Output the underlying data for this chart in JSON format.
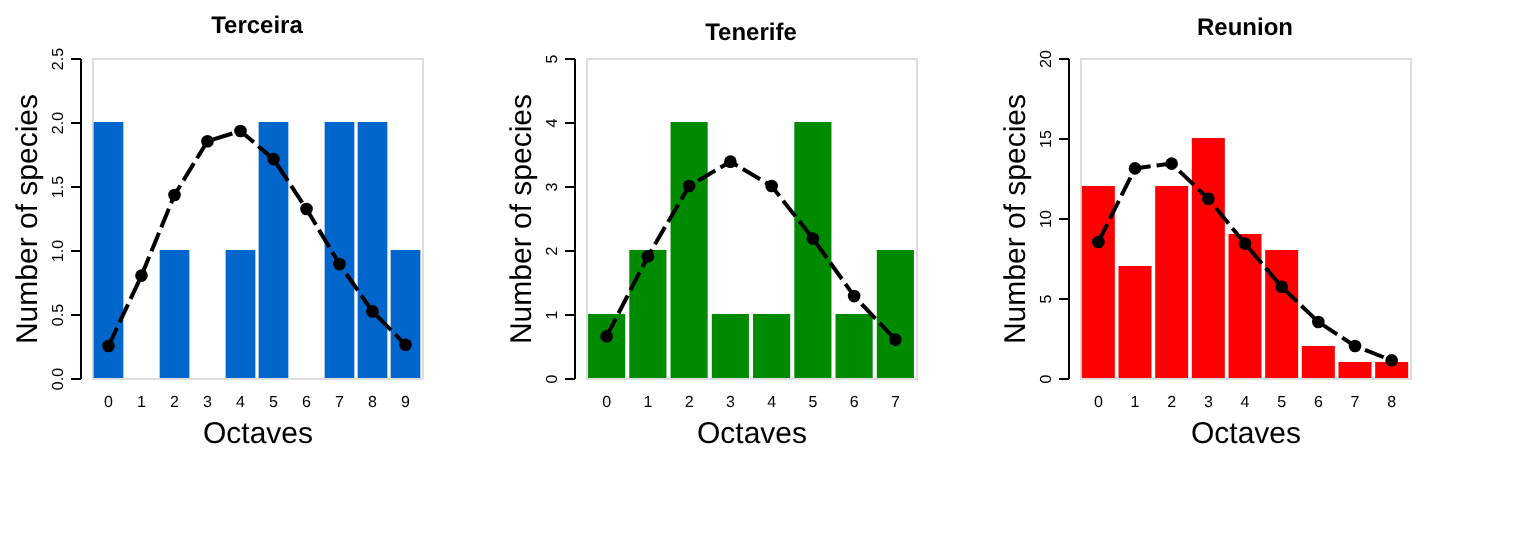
{
  "chart_data": [
    {
      "type": "bar",
      "title": "Terceira",
      "xlabel": "Octaves",
      "ylabel": "Number of species",
      "categories": [
        "0",
        "1",
        "2",
        "3",
        "4",
        "5",
        "6",
        "7",
        "8",
        "9"
      ],
      "ylim": [
        0,
        2.5
      ],
      "yticks": [
        {
          "value": 0,
          "label": "0.0"
        },
        {
          "value": 0.5,
          "label": "0.5"
        },
        {
          "value": 1,
          "label": "1.0"
        },
        {
          "value": 1.5,
          "label": "1.5"
        },
        {
          "value": 2,
          "label": "2.0"
        },
        {
          "value": 2.5,
          "label": "2.5"
        }
      ],
      "grid": false,
      "series": [
        {
          "color": "#0066cc",
          "values": [
            2,
            0,
            1,
            0,
            1,
            2,
            0,
            2,
            2,
            1
          ]
        },
        {
          "type": "line",
          "color": "#000000",
          "marker": "circle",
          "line_style": "dashed",
          "values": [
            0.25,
            0.8,
            1.43,
            1.85,
            1.93,
            1.71,
            1.32,
            0.89,
            0.52,
            0.26
          ]
        }
      ]
    },
    {
      "type": "bar",
      "title": "Tenerife",
      "xlabel": "Octaves",
      "ylabel": "Number of species",
      "categories": [
        "0",
        "1",
        "2",
        "3",
        "4",
        "5",
        "6",
        "7"
      ],
      "ylim": [
        0,
        5
      ],
      "yticks": [
        0,
        1,
        2,
        3,
        4,
        5
      ],
      "grid": false,
      "series": [
        {
          "color": "#008a00",
          "values": [
            1,
            2,
            4,
            1,
            1,
            4,
            1,
            2
          ]
        },
        {
          "type": "line",
          "color": "#000000",
          "marker": "circle",
          "line_style": "dashed",
          "values": [
            0.65,
            1.9,
            3.0,
            3.38,
            3.0,
            2.18,
            1.28,
            0.6
          ]
        }
      ]
    },
    {
      "type": "bar",
      "title": "Reunion",
      "xlabel": "Octaves",
      "ylabel": "Number of species",
      "categories": [
        "0",
        "1",
        "2",
        "3",
        "4",
        "5",
        "6",
        "7",
        "8"
      ],
      "ylim": [
        0,
        20
      ],
      "yticks": [
        0,
        5,
        10,
        15,
        20
      ],
      "grid": false,
      "series": [
        {
          "color": "#ff0000",
          "values": [
            12,
            7,
            12,
            15,
            9,
            8,
            2,
            1,
            1
          ]
        },
        {
          "type": "line",
          "color": "#000000",
          "marker": "circle",
          "line_style": "dashed",
          "values": [
            8.5,
            13.1,
            13.4,
            11.2,
            8.4,
            5.7,
            3.5,
            2.0,
            1.1
          ]
        }
      ]
    }
  ]
}
